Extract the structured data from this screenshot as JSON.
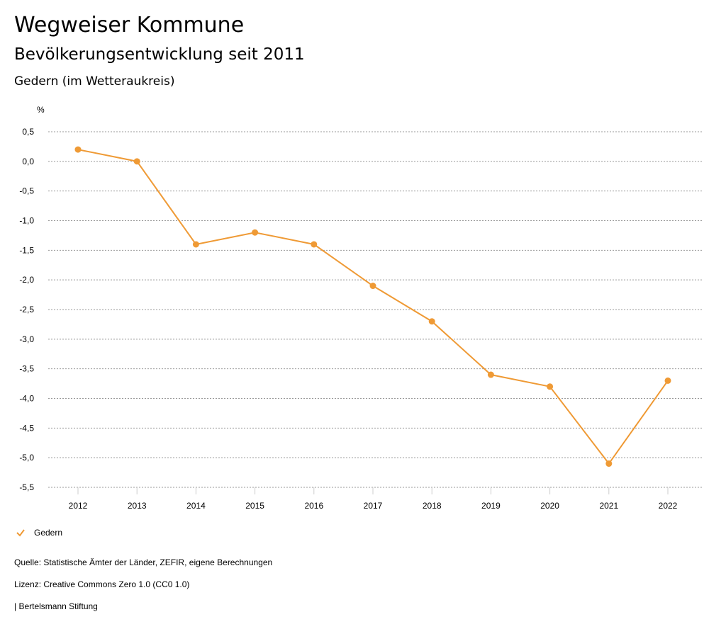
{
  "header": {
    "title": "Wegweiser Kommune",
    "subtitle": "Bevölkerungsentwicklung seit 2011",
    "region": "Gedern (im Wetteraukreis)"
  },
  "chart_data": {
    "type": "line",
    "ylabel": "%",
    "ylim": [
      -5.5,
      0.5
    ],
    "yticks": [
      "0,5",
      "0,0",
      "-0,5",
      "-1,0",
      "-1,5",
      "-2,0",
      "-2,5",
      "-3,0",
      "-3,5",
      "-4,0",
      "-4,5",
      "-5,0",
      "-5,5"
    ],
    "x": [
      "2012",
      "2013",
      "2014",
      "2015",
      "2016",
      "2017",
      "2018",
      "2019",
      "2020",
      "2021",
      "2022"
    ],
    "series": [
      {
        "name": "Gedern",
        "color": "#ef9a35",
        "values": [
          0.2,
          0.0,
          -1.4,
          -1.2,
          -1.4,
          -2.1,
          -2.7,
          -3.6,
          -3.8,
          -5.1,
          -3.7
        ]
      }
    ],
    "grid": true,
    "legend": "bottom-left"
  },
  "footer": {
    "source": "Quelle: Statistische Ämter der Länder, ZEFIR, eigene Berechnungen",
    "license": "Lizenz: Creative Commons Zero 1.0 (CC0 1.0)",
    "brand": "| Bertelsmann Stiftung"
  }
}
